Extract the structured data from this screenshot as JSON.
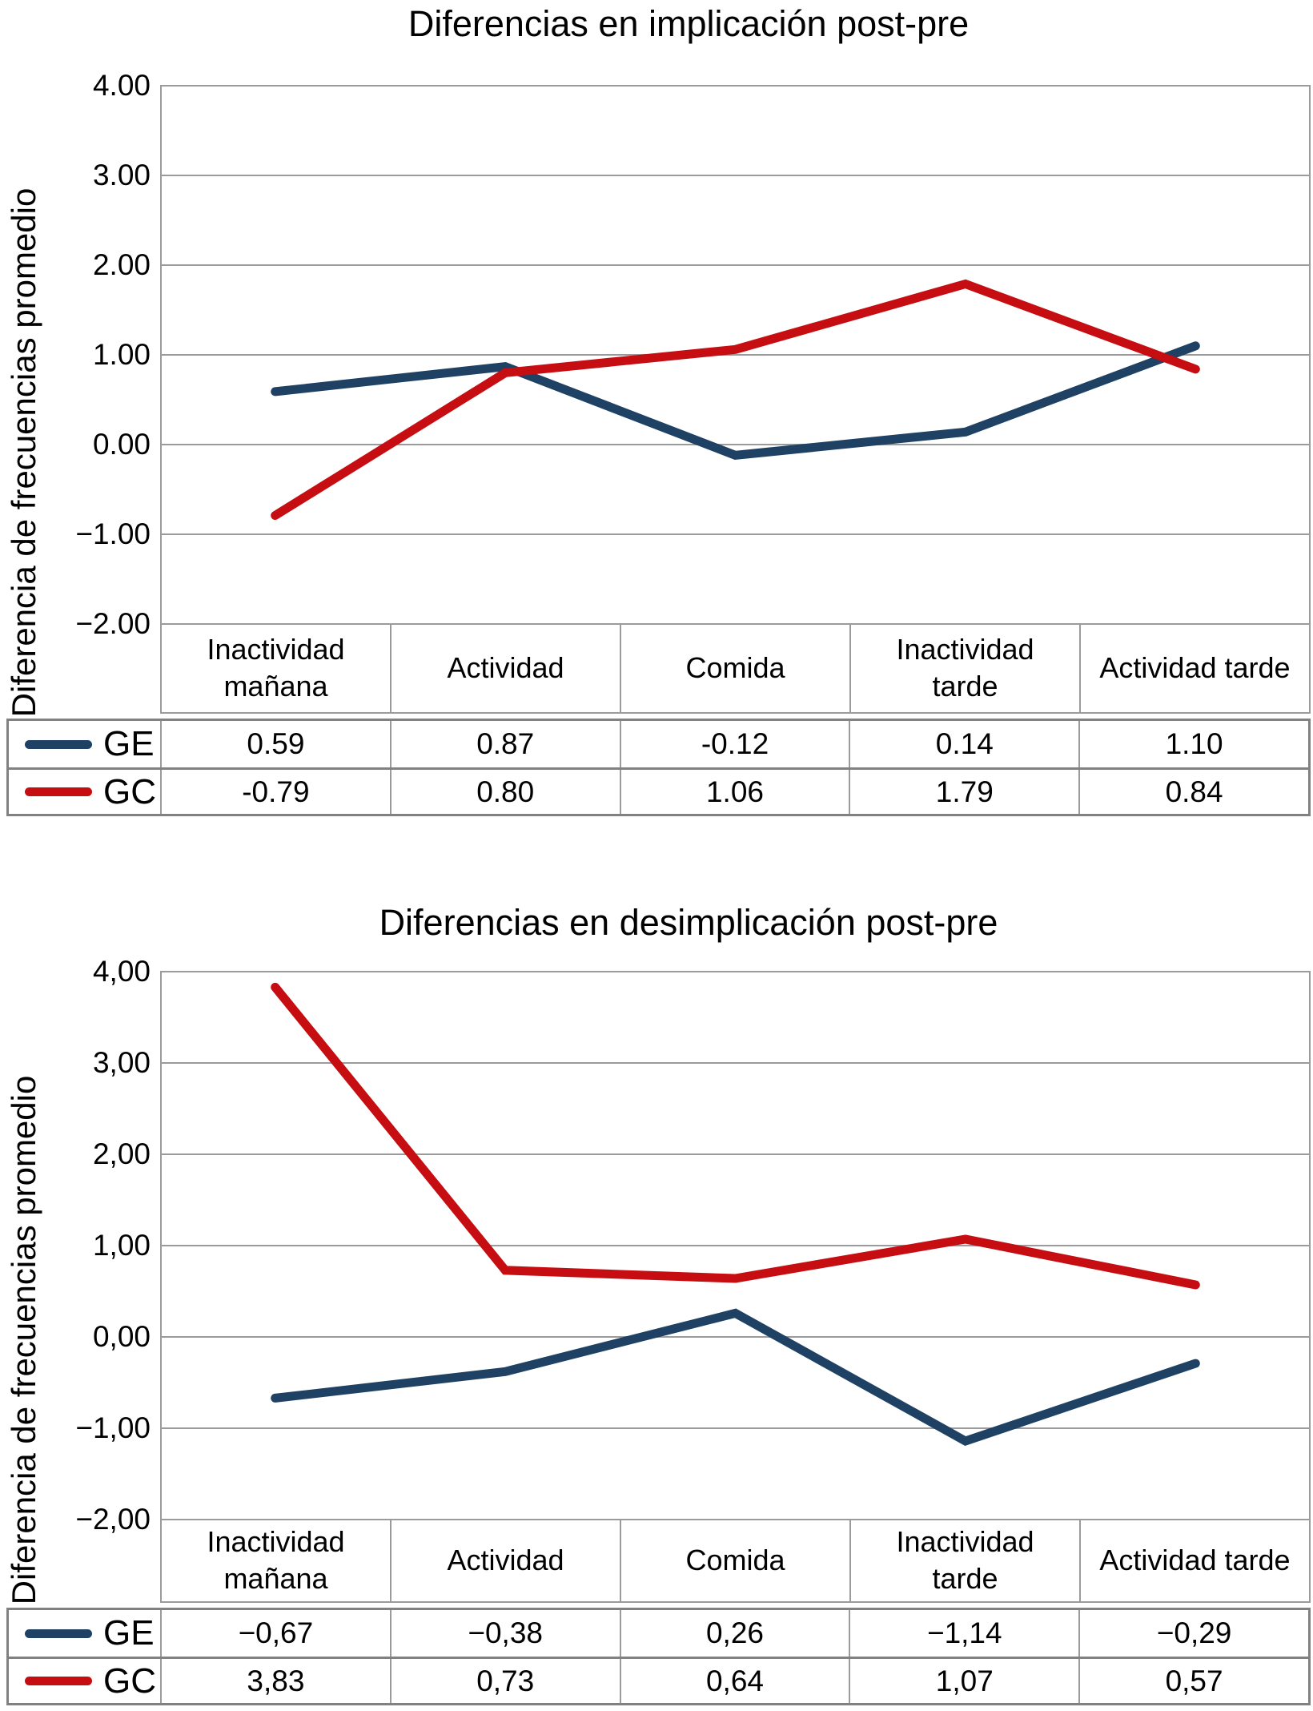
{
  "figure": {
    "background": "#ffffff"
  },
  "style": {
    "grid_color": "#9b9b9b",
    "axis_border_color": "#9b9b9b",
    "table_thick_border_color": "#818181",
    "table_thin_border_color": "#9b9b9b",
    "text_color": "#000000",
    "line_width": 11
  },
  "chart_data": [
    {
      "type": "line",
      "title": "Diferencias en implicación post-pre",
      "ylabel": "Diferencia de frecuencias promedio",
      "xlabel": "",
      "ylim": [
        -2,
        4
      ],
      "grid": true,
      "legend_position": "table-left",
      "decimal_separator": ".",
      "yticks": [
        {
          "value": 4,
          "label": "4.00"
        },
        {
          "value": 3,
          "label": "3.00"
        },
        {
          "value": 2,
          "label": "2.00"
        },
        {
          "value": 1,
          "label": "1.00"
        },
        {
          "value": 0,
          "label": "0.00"
        },
        {
          "value": -1,
          "label": "−1.00"
        },
        {
          "value": -2,
          "label": "−2.00"
        }
      ],
      "categories": [
        "Inactividad mañana",
        "Actividad",
        "Comida",
        "Inactividad tarde",
        "Actividad tarde"
      ],
      "series": [
        {
          "name": "GE",
          "color": "#1e4164",
          "values": [
            0.59,
            0.87,
            -0.12,
            0.14,
            1.1
          ],
          "value_labels": [
            "0.59",
            "0.87",
            "-0.12",
            "0.14",
            "1.10"
          ]
        },
        {
          "name": "GC",
          "color": "#c60d12",
          "values": [
            -0.79,
            0.8,
            1.06,
            1.79,
            0.84
          ],
          "value_labels": [
            "-0.79",
            "0.80",
            "1.06",
            "1.79",
            "0.84"
          ]
        }
      ]
    },
    {
      "type": "line",
      "title": "Diferencias en desimplicación post-pre",
      "ylabel": "Diferencia de frecuencias promedio",
      "xlabel": "",
      "ylim": [
        -2,
        4
      ],
      "grid": true,
      "legend_position": "table-left",
      "decimal_separator": ",",
      "yticks": [
        {
          "value": 4,
          "label": "4,00"
        },
        {
          "value": 3,
          "label": "3,00"
        },
        {
          "value": 2,
          "label": "2,00"
        },
        {
          "value": 1,
          "label": "1,00"
        },
        {
          "value": 0,
          "label": "0,00"
        },
        {
          "value": -1,
          "label": "−1,00"
        },
        {
          "value": -2,
          "label": "−2,00"
        }
      ],
      "categories": [
        "Inactividad mañana",
        "Actividad",
        "Comida",
        "Inactividad tarde",
        "Actividad tarde"
      ],
      "series": [
        {
          "name": "GE",
          "color": "#1e4164",
          "values": [
            -0.67,
            -0.38,
            0.26,
            -1.14,
            -0.29
          ],
          "value_labels": [
            "−0,67",
            "−0,38",
            "0,26",
            "−1,14",
            "−0,29"
          ]
        },
        {
          "name": "GC",
          "color": "#c60d12",
          "values": [
            3.83,
            0.73,
            0.64,
            1.07,
            0.57
          ],
          "value_labels": [
            "3,83",
            "0,73",
            "0,64",
            "1,07",
            "0,57"
          ]
        }
      ]
    }
  ]
}
